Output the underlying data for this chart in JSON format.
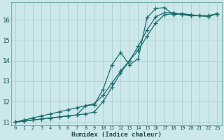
{
  "xlabel": "Humidex (Indice chaleur)",
  "bg_color": "#cce8ea",
  "grid_color": "#aacfcf",
  "line_color": "#1a6b6b",
  "xmin": -0.5,
  "xmax": 23.5,
  "ymin": 10.85,
  "ymax": 16.85,
  "line1_x": [
    0,
    1,
    2,
    3,
    4,
    5,
    6,
    7,
    8,
    9,
    10,
    11,
    12,
    13,
    14,
    15,
    16,
    17,
    18,
    19,
    20,
    21,
    22,
    23
  ],
  "line1_y": [
    11.0,
    11.05,
    11.1,
    11.15,
    11.2,
    11.25,
    11.3,
    11.35,
    11.4,
    11.5,
    12.0,
    12.7,
    13.4,
    14.0,
    14.7,
    15.5,
    16.15,
    16.35,
    16.35,
    16.25,
    16.2,
    16.2,
    16.2,
    16.3
  ],
  "line2_x": [
    0,
    1,
    2,
    3,
    4,
    5,
    6,
    7,
    8,
    9,
    10,
    11,
    12,
    13,
    14,
    15,
    16,
    17,
    18,
    19,
    20,
    21,
    22,
    23
  ],
  "line2_y": [
    11.0,
    11.1,
    11.2,
    11.3,
    11.4,
    11.5,
    11.6,
    11.7,
    11.8,
    11.9,
    12.3,
    12.9,
    13.5,
    14.0,
    14.5,
    15.2,
    15.85,
    16.25,
    16.3,
    16.3,
    16.25,
    16.2,
    16.2,
    16.3
  ],
  "line3_x": [
    0,
    1,
    2,
    3,
    4,
    5,
    6,
    7,
    8,
    9,
    10,
    11,
    12,
    13,
    14,
    15,
    16,
    17,
    18,
    19,
    20,
    21,
    22,
    23
  ],
  "line3_y": [
    11.0,
    11.05,
    11.1,
    11.15,
    11.2,
    11.25,
    11.3,
    11.35,
    11.8,
    11.85,
    12.6,
    13.8,
    14.4,
    13.8,
    14.1,
    16.1,
    16.55,
    16.6,
    16.25,
    16.3,
    16.2,
    16.2,
    16.15,
    16.3
  ],
  "yticks": [
    11,
    12,
    13,
    14,
    15,
    16
  ],
  "xticks": [
    0,
    1,
    2,
    3,
    4,
    5,
    6,
    7,
    8,
    9,
    10,
    11,
    12,
    13,
    14,
    15,
    16,
    17,
    18,
    19,
    20,
    21,
    22,
    23
  ]
}
